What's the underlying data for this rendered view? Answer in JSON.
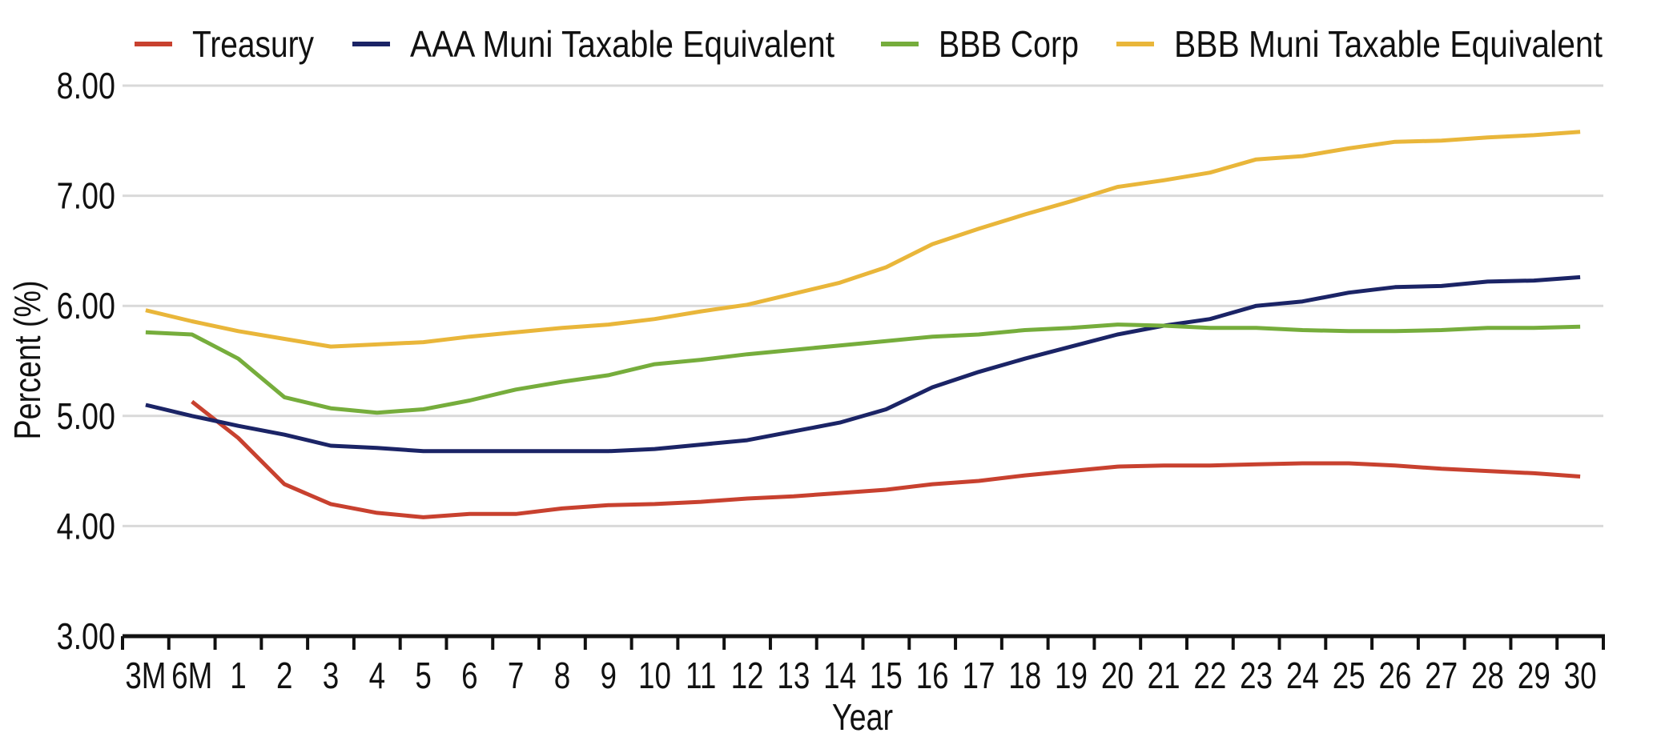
{
  "chart_data": {
    "type": "line",
    "title": "",
    "xlabel": "Year",
    "ylabel": "Percent (%)",
    "ylim": [
      3,
      8
    ],
    "yticks": [
      "3.00",
      "4.00",
      "5.00",
      "6.00",
      "7.00",
      "8.00"
    ],
    "grid": true,
    "legend_position": "top",
    "categories": [
      "3M",
      "6M",
      "1",
      "2",
      "3",
      "4",
      "5",
      "6",
      "7",
      "8",
      "9",
      "10",
      "11",
      "12",
      "13",
      "14",
      "15",
      "16",
      "17",
      "18",
      "19",
      "20",
      "21",
      "22",
      "23",
      "24",
      "25",
      "26",
      "27",
      "28",
      "29",
      "30"
    ],
    "series": [
      {
        "name": "Treasury",
        "color": "#c8412f",
        "values": [
          null,
          5.13,
          4.8,
          4.38,
          4.2,
          4.12,
          4.08,
          4.11,
          4.11,
          4.16,
          4.19,
          4.2,
          4.22,
          4.25,
          4.27,
          4.3,
          4.33,
          4.38,
          4.41,
          4.46,
          4.5,
          4.54,
          4.55,
          4.55,
          4.56,
          4.57,
          4.57,
          4.55,
          4.52,
          4.5,
          4.48,
          4.45
        ]
      },
      {
        "name": "AAA Muni Taxable Equivalent",
        "color": "#1b2466",
        "values": [
          5.1,
          5.0,
          4.91,
          4.83,
          4.73,
          4.71,
          4.68,
          4.68,
          4.68,
          4.68,
          4.68,
          4.7,
          4.74,
          4.78,
          4.86,
          4.94,
          5.06,
          5.26,
          5.4,
          5.52,
          5.63,
          5.74,
          5.82,
          5.88,
          6.0,
          6.04,
          6.12,
          6.17,
          6.18,
          6.22,
          6.23,
          6.26
        ]
      },
      {
        "name": "BBB Corp",
        "color": "#76ad3c",
        "values": [
          5.76,
          5.74,
          5.52,
          5.17,
          5.07,
          5.03,
          5.06,
          5.14,
          5.24,
          5.31,
          5.37,
          5.47,
          5.51,
          5.56,
          5.6,
          5.64,
          5.68,
          5.72,
          5.74,
          5.78,
          5.8,
          5.83,
          5.82,
          5.8,
          5.8,
          5.78,
          5.77,
          5.77,
          5.78,
          5.8,
          5.8,
          5.81
        ]
      },
      {
        "name": "BBB Muni Taxable Equivalent",
        "color": "#e9b63a",
        "values": [
          5.96,
          5.86,
          5.77,
          5.7,
          5.63,
          5.65,
          5.67,
          5.72,
          5.76,
          5.8,
          5.83,
          5.88,
          5.95,
          6.01,
          6.11,
          6.21,
          6.35,
          6.56,
          6.7,
          6.83,
          6.95,
          7.08,
          7.14,
          7.21,
          7.33,
          7.36,
          7.43,
          7.49,
          7.5,
          7.53,
          7.55,
          7.58
        ]
      }
    ]
  }
}
